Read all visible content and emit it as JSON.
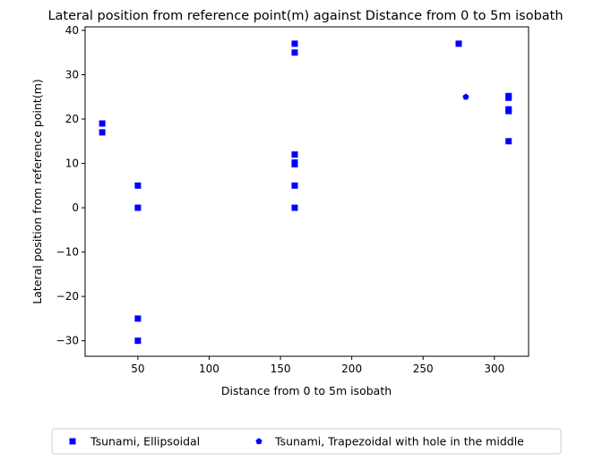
{
  "chart_data": {
    "type": "scatter",
    "title": "Lateral position from reference point(m) against Distance from 0 to 5m isobath",
    "xlabel": "Distance from 0 to 5m isobath",
    "ylabel": "Lateral position from reference point(m)",
    "xlim": [
      13,
      324
    ],
    "ylim": [
      -33.5,
      40.8
    ],
    "xticks": [
      50,
      100,
      150,
      200,
      250,
      300
    ],
    "yticks": [
      -30,
      -20,
      -10,
      0,
      10,
      20,
      30,
      40
    ],
    "ytick_labels": [
      "−30",
      "−20",
      "−10",
      "0",
      "10",
      "20",
      "30",
      "40"
    ],
    "grid": false,
    "legend_position": "bottom-center",
    "series": [
      {
        "name": "Tsunami, Ellipsoidal",
        "marker": "square",
        "color": "#0000ff",
        "points": [
          [
            25,
            19
          ],
          [
            25,
            17
          ],
          [
            50,
            5
          ],
          [
            50,
            0
          ],
          [
            50,
            -25
          ],
          [
            50,
            -30
          ],
          [
            160,
            37
          ],
          [
            160,
            35
          ],
          [
            160,
            12
          ],
          [
            160,
            10.2
          ],
          [
            160,
            9.8
          ],
          [
            160,
            5
          ],
          [
            160,
            0
          ],
          [
            275,
            37
          ],
          [
            310,
            25.2
          ],
          [
            310,
            24.8
          ],
          [
            310,
            22.2
          ],
          [
            310,
            21.8
          ],
          [
            310,
            15
          ]
        ]
      },
      {
        "name": "Tsunami, Trapezoidal with hole in the middle",
        "marker": "pentagon",
        "color": "#0000ff",
        "points": [
          [
            280,
            25
          ]
        ]
      }
    ]
  }
}
